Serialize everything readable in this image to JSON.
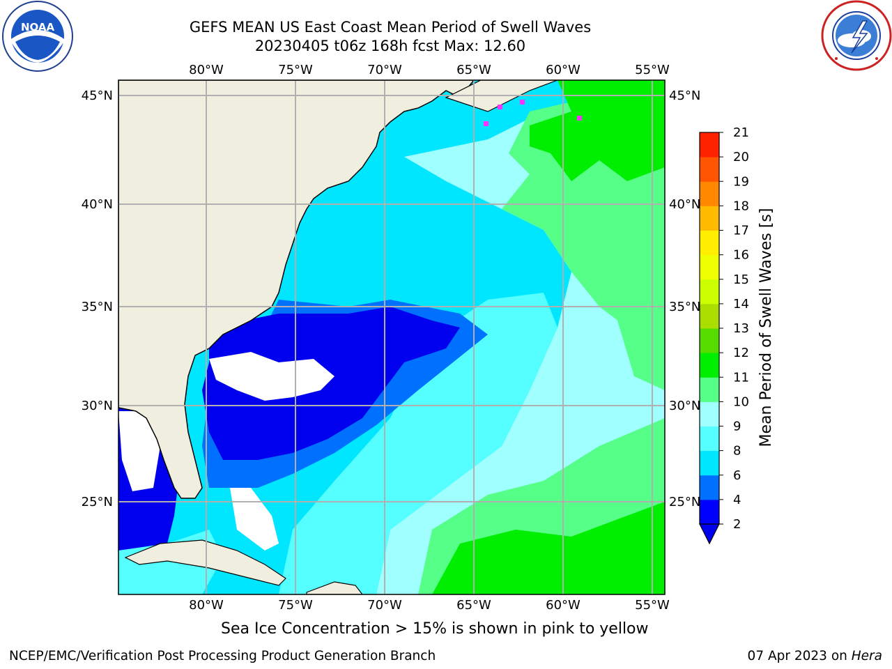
{
  "title": {
    "line1": "GEFS MEAN US East Coast Mean Period of Swell Waves",
    "line2": "20230405 t06z 168h fcst   Max: 12.60"
  },
  "map": {
    "lon_labels": [
      "80°W",
      "75°W",
      "70°W",
      "65°W",
      "60°W",
      "55°W"
    ],
    "lat_labels": [
      "45°N",
      "40°N",
      "35°N",
      "30°N",
      "25°N"
    ],
    "colors": {
      "land": "#efeedf",
      "undefined_sea": "#ffffff",
      "grid": "#b0b0b0",
      "sea_ice_marker": "#ff33ff"
    }
  },
  "colorbar": {
    "label": "Mean Period of Swell Waves [s]",
    "ticks": [
      "2",
      "4",
      "6",
      "8",
      "9",
      "10",
      "11",
      "12",
      "13",
      "14",
      "15",
      "16",
      "17",
      "18",
      "19",
      "20",
      "21"
    ],
    "colors": [
      "#0000ff",
      "#0070ff",
      "#00e6ff",
      "#55ffff",
      "#a0ffff",
      "#55ff88",
      "#00ee00",
      "#55dd00",
      "#aadd00",
      "#ccff00",
      "#eeff00",
      "#ffee00",
      "#ffbb00",
      "#ff8800",
      "#ff5500",
      "#ff2200",
      "#ff0000"
    ],
    "under_color": "#0000ee"
  },
  "note": "Sea Ice Concentration > 15% is shown in pink to yellow",
  "footer": {
    "left": "NCEP/EMC/Verification Post Processing Product Generation Branch",
    "date": "07 Apr 2023 on ",
    "machine": "Hera"
  }
}
